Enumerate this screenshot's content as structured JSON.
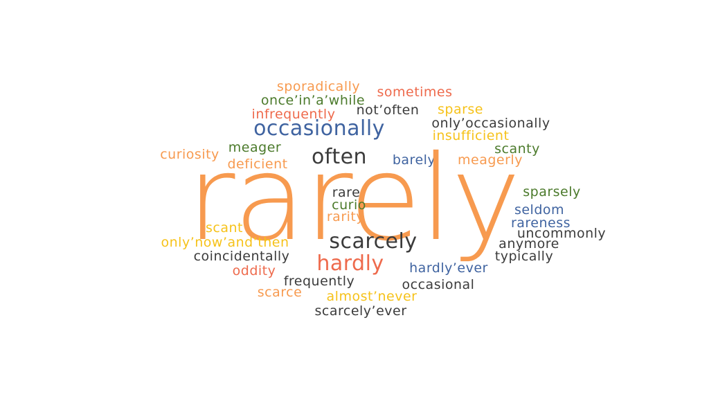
{
  "colors": {
    "orange": "#f79a4f",
    "red": "#ee6a4c",
    "blue": "#3f63a0",
    "green": "#4b7a2b",
    "yellow": "#f6c21a",
    "dark": "#3b3b3b"
  },
  "words": [
    {
      "text": "sporadically",
      "color": "orange"
    },
    {
      "text": "sometimes",
      "color": "red"
    },
    {
      "text": "once’in’a’while",
      "color": "green"
    },
    {
      "text": "infrequently",
      "color": "red"
    },
    {
      "text": "not’often",
      "color": "dark"
    },
    {
      "text": "sparse",
      "color": "yellow"
    },
    {
      "text": "only’occasionally",
      "color": "dark"
    },
    {
      "text": "occasionally",
      "color": "blue"
    },
    {
      "text": "insufficient",
      "color": "yellow"
    },
    {
      "text": "meager",
      "color": "green"
    },
    {
      "text": "curiosity",
      "color": "orange"
    },
    {
      "text": "often",
      "color": "dark"
    },
    {
      "text": "scanty",
      "color": "green"
    },
    {
      "text": "deficient",
      "color": "orange"
    },
    {
      "text": "barely",
      "color": "blue"
    },
    {
      "text": "meagerly",
      "color": "orange"
    },
    {
      "text": "rarely",
      "color": "orange"
    },
    {
      "text": "rare",
      "color": "dark"
    },
    {
      "text": "sparsely",
      "color": "green"
    },
    {
      "text": "curio",
      "color": "green"
    },
    {
      "text": "seldom",
      "color": "blue"
    },
    {
      "text": "rarity",
      "color": "orange"
    },
    {
      "text": "rareness",
      "color": "blue"
    },
    {
      "text": "scant",
      "color": "yellow"
    },
    {
      "text": "uncommonly",
      "color": "dark"
    },
    {
      "text": "only’now’and’then",
      "color": "yellow"
    },
    {
      "text": "scarcely",
      "color": "dark"
    },
    {
      "text": "anymore",
      "color": "dark"
    },
    {
      "text": "coincidentally",
      "color": "dark"
    },
    {
      "text": "typically",
      "color": "dark"
    },
    {
      "text": "hardly",
      "color": "red"
    },
    {
      "text": "hardly’ever",
      "color": "blue"
    },
    {
      "text": "oddity",
      "color": "red"
    },
    {
      "text": "frequently",
      "color": "dark"
    },
    {
      "text": "occasional",
      "color": "dark"
    },
    {
      "text": "scarce",
      "color": "orange"
    },
    {
      "text": "almost’never",
      "color": "yellow"
    },
    {
      "text": "scarcely’ever",
      "color": "dark"
    }
  ]
}
